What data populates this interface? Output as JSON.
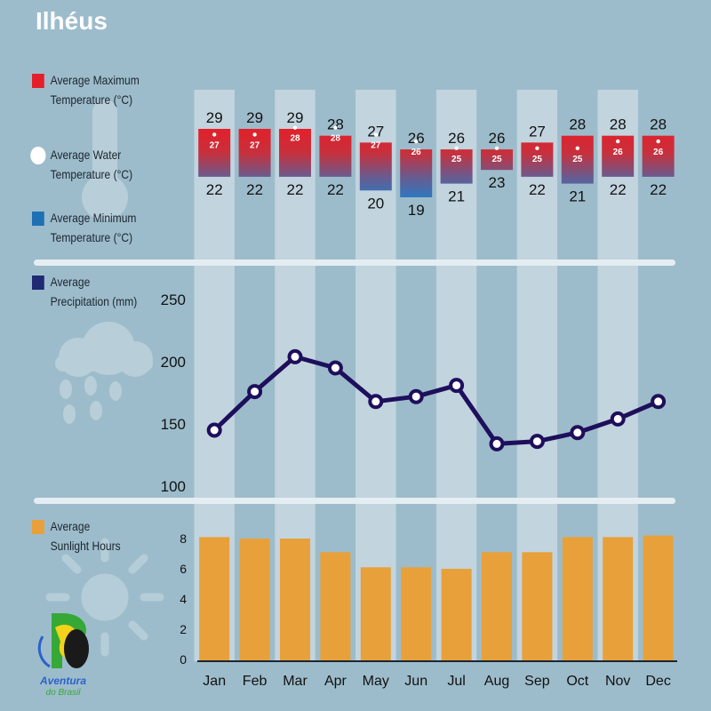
{
  "title": "Ilhéus",
  "legend": {
    "max_temp": {
      "line1": "Average Maximum",
      "line2": "Temperature (°C)",
      "color": "#e3202a"
    },
    "water_temp": {
      "line1": "Average Water",
      "line2": "Temperature (°C)",
      "color": "#ffffff"
    },
    "min_temp": {
      "line1": "Average Minimum",
      "line2": "Temperature (°C)",
      "color": "#1f6fb5"
    },
    "precipitation": {
      "line1": "Average",
      "line2": "Precipitation (mm)",
      "color": "#1f2a73"
    },
    "sunlight": {
      "line1": "Average",
      "line2": "Sunlight Hours",
      "color": "#e8a03a"
    }
  },
  "logo": {
    "line1": "Aventura",
    "line2": "do Brasil"
  },
  "chart_data": [
    {
      "type": "bar",
      "subtype": "range",
      "categories": [
        "Jan",
        "Feb",
        "Mar",
        "Apr",
        "May",
        "Jun",
        "Jul",
        "Aug",
        "Sep",
        "Oct",
        "Nov",
        "Dec"
      ],
      "series": [
        {
          "name": "Average Maximum Temperature (°C)",
          "values": [
            29,
            29,
            29,
            28,
            27,
            26,
            26,
            26,
            27,
            28,
            28,
            28
          ]
        },
        {
          "name": "Average Water Temperature (°C)",
          "values": [
            27,
            27,
            28,
            28,
            27,
            26,
            25,
            25,
            25,
            25,
            26,
            26
          ]
        },
        {
          "name": "Average Minimum Temperature (°C)",
          "values": [
            22,
            22,
            22,
            22,
            20,
            19,
            21,
            23,
            22,
            21,
            22,
            22
          ]
        }
      ]
    },
    {
      "type": "line",
      "categories": [
        "Jan",
        "Feb",
        "Mar",
        "Apr",
        "May",
        "Jun",
        "Jul",
        "Aug",
        "Sep",
        "Oct",
        "Nov",
        "Dec"
      ],
      "series": [
        {
          "name": "Average Precipitation (mm)",
          "values": [
            145,
            176,
            204,
            195,
            168,
            172,
            181,
            134,
            136,
            143,
            154,
            168
          ]
        }
      ],
      "ylim": [
        100,
        250
      ],
      "yticks": [
        100,
        150,
        200,
        250
      ]
    },
    {
      "type": "bar",
      "categories": [
        "Jan",
        "Feb",
        "Mar",
        "Apr",
        "May",
        "Jun",
        "Jul",
        "Aug",
        "Sep",
        "Oct",
        "Nov",
        "Dec"
      ],
      "series": [
        {
          "name": "Average Sunlight Hours",
          "values": [
            8.1,
            8.0,
            8.0,
            7.1,
            6.1,
            6.1,
            6.0,
            7.1,
            7.1,
            8.1,
            8.1,
            8.2
          ]
        }
      ],
      "ylim": [
        0,
        9
      ],
      "yticks": [
        0,
        2,
        4,
        6,
        8
      ]
    }
  ]
}
